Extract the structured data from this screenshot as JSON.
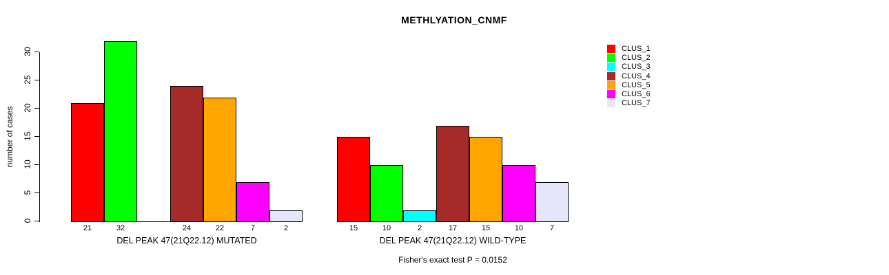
{
  "chart_data": {
    "type": "bar",
    "title": "METHLYATION_CNMF",
    "ylabel": "number of cases",
    "xlabel": "",
    "ylim": [
      0,
      30
    ],
    "yticks": [
      0,
      5,
      10,
      15,
      20,
      25,
      30
    ],
    "grid": false,
    "legend_position": "right",
    "bar_value_labels": true,
    "series": [
      {
        "name": "CLUS_1",
        "color": "#FF0000"
      },
      {
        "name": "CLUS_2",
        "color": "#00FF00"
      },
      {
        "name": "CLUS_3",
        "color": "#00FFFF"
      },
      {
        "name": "CLUS_4",
        "color": "#A52A2A"
      },
      {
        "name": "CLUS_5",
        "color": "#FFA500"
      },
      {
        "name": "CLUS_6",
        "color": "#FF00FF"
      },
      {
        "name": "CLUS_7",
        "color": "#E6E6FA"
      }
    ],
    "groups": [
      {
        "label": "DEL PEAK 47(21Q22.12) MUTATED",
        "values": [
          21,
          32,
          0,
          24,
          22,
          7,
          2
        ]
      },
      {
        "label": "DEL PEAK 47(21Q22.12) WILD-TYPE",
        "values": [
          15,
          10,
          2,
          17,
          15,
          10,
          7
        ]
      }
    ],
    "annotation": "Fisher's exact test P = 0.0152"
  }
}
